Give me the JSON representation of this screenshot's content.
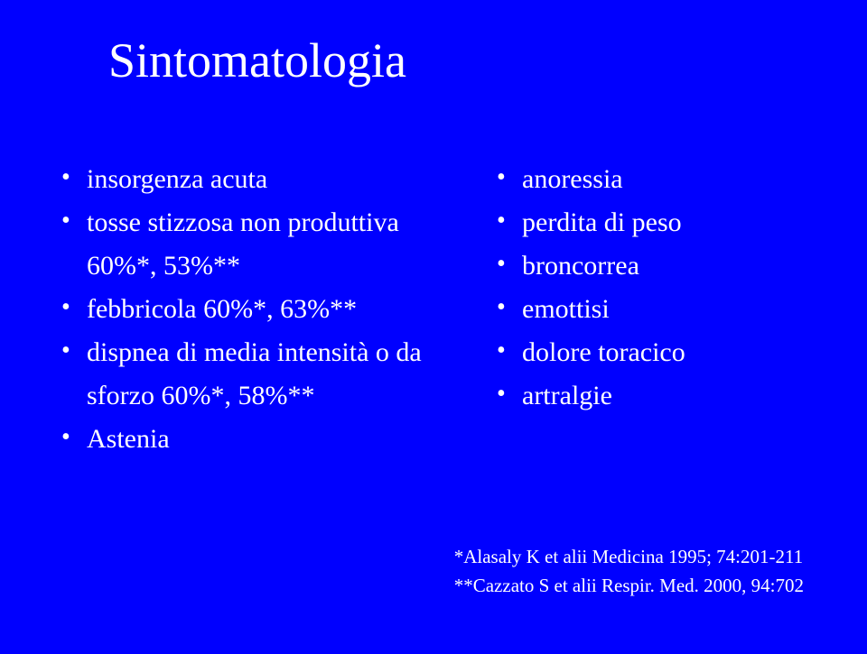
{
  "title": "Sintomatologia",
  "leftColumn": {
    "items": [
      "insorgenza acuta",
      "tosse stizzosa non produttiva 60%*, 53%**",
      "febbricola 60%*, 63%**",
      "dispnea di media intensità o da sforzo 60%*, 58%**",
      "Astenia"
    ]
  },
  "rightColumn": {
    "items": [
      "anoressia",
      "perdita di peso",
      "broncorrea",
      "emottisi",
      "dolore toracico",
      "artralgie"
    ]
  },
  "references": {
    "line1": "*Alasaly K et alii Medicina 1995; 74:201-211",
    "line2": "**Cazzato S et alii Respir. Med. 2000, 94:702"
  },
  "colors": {
    "background": "#0000ff",
    "text": "#ffffff"
  }
}
